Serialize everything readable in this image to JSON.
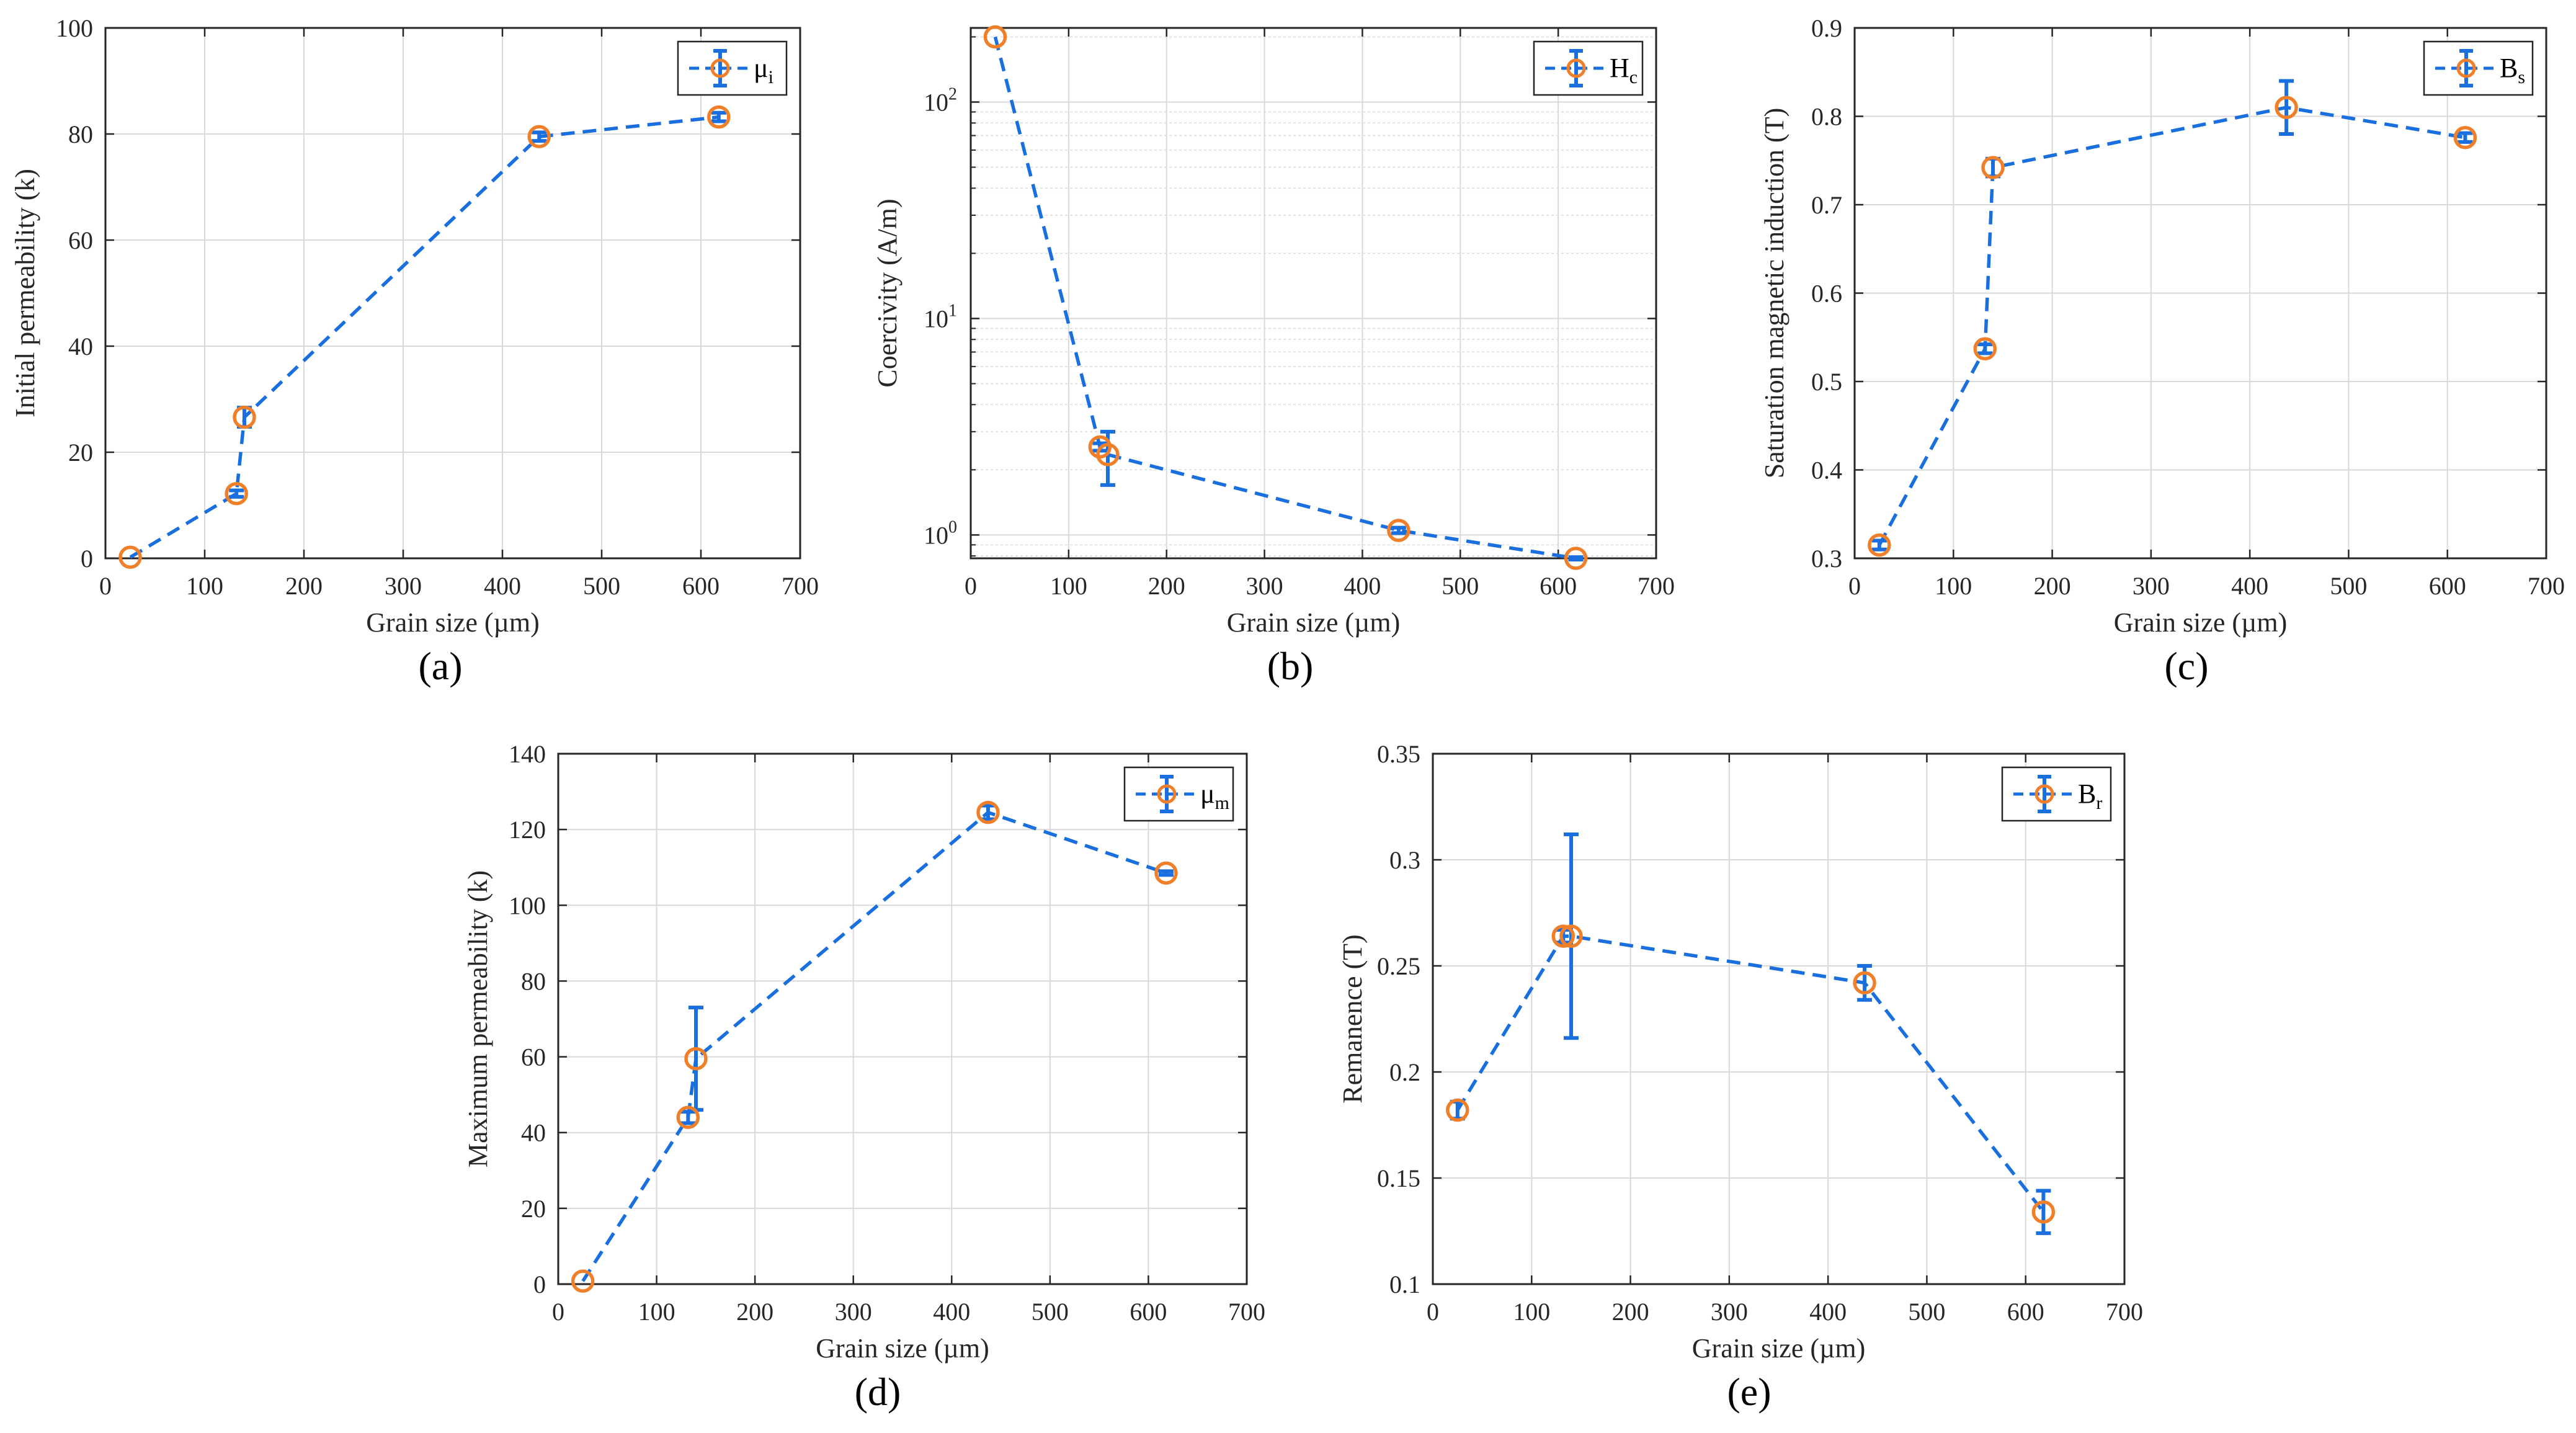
{
  "colors": {
    "line": "#1a6fdf",
    "marker": "#f07f2a",
    "grid": "#d9d9d9",
    "axis": "#262626"
  },
  "chart_data": [
    {
      "id": "a",
      "type": "line",
      "panel_label": "(a)",
      "xlabel": "Grain size (µm)",
      "ylabel": "Initial permeability (k)",
      "xlim": [
        0,
        700
      ],
      "ylim": [
        0,
        100
      ],
      "yscale": "linear",
      "xticks": [
        0,
        100,
        200,
        300,
        400,
        500,
        600,
        700
      ],
      "xtick_labels": [
        "0",
        "100",
        "200",
        "300",
        "400",
        "500",
        "600",
        "700"
      ],
      "yticks": [
        0,
        20,
        40,
        60,
        80,
        100
      ],
      "ytick_labels": [
        "0",
        "20",
        "40",
        "60",
        "80",
        "100"
      ],
      "legend": {
        "base": "μ",
        "sub": "i",
        "position": "top-right"
      },
      "series": [
        {
          "name": "μi",
          "x": [
            25,
            132,
            140,
            437,
            618
          ],
          "y": [
            0.2,
            12.2,
            26.6,
            79.5,
            83.2
          ],
          "err": [
            0,
            0.6,
            1.8,
            0.8,
            0.8
          ]
        }
      ]
    },
    {
      "id": "b",
      "type": "line",
      "panel_label": "(b)",
      "xlabel": "Grain size (µm)",
      "ylabel": "Coercivity (A/m)",
      "xlim": [
        0,
        700
      ],
      "ylim": [
        0.78,
        220
      ],
      "yscale": "log",
      "xticks": [
        0,
        100,
        200,
        300,
        400,
        500,
        600,
        700
      ],
      "xtick_labels": [
        "0",
        "100",
        "200",
        "300",
        "400",
        "500",
        "600",
        "700"
      ],
      "yticks_major": [
        1,
        10,
        100
      ],
      "ytick_labels": [
        {
          "base": "10",
          "exp": "0"
        },
        {
          "base": "10",
          "exp": "1"
        },
        {
          "base": "10",
          "exp": "2"
        }
      ],
      "legend": {
        "base": "H",
        "sub": "c",
        "position": "top-right"
      },
      "series": [
        {
          "name": "Hc",
          "x": [
            25,
            132,
            140,
            437,
            618
          ],
          "y": [
            200,
            2.55,
            2.35,
            1.05,
            0.78
          ],
          "err_lo": [
            0,
            0.1,
            0.65,
            0.03,
            0.01
          ],
          "err_hi": [
            0,
            0.1,
            0.65,
            0.03,
            0.01
          ]
        }
      ]
    },
    {
      "id": "c",
      "type": "line",
      "panel_label": "(c)",
      "xlabel": "Grain size (µm)",
      "ylabel": "Saturation magnetic induction (T)",
      "xlim": [
        0,
        700
      ],
      "ylim": [
        0.3,
        0.9
      ],
      "yscale": "linear",
      "xticks": [
        0,
        100,
        200,
        300,
        400,
        500,
        600,
        700
      ],
      "xtick_labels": [
        "0",
        "100",
        "200",
        "300",
        "400",
        "500",
        "600",
        "700"
      ],
      "yticks": [
        0.3,
        0.4,
        0.5,
        0.6,
        0.7,
        0.8,
        0.9
      ],
      "ytick_labels": [
        "0.3",
        "0.4",
        "0.5",
        "0.6",
        "0.7",
        "0.8",
        "0.9"
      ],
      "legend": {
        "base": "B",
        "sub": "s",
        "position": "top-right"
      },
      "series": [
        {
          "name": "Bs",
          "x": [
            25,
            132,
            140,
            437,
            618
          ],
          "y": [
            0.315,
            0.537,
            0.742,
            0.81,
            0.776
          ],
          "err": [
            0.005,
            0.005,
            0.01,
            0.03,
            0.005
          ]
        }
      ]
    },
    {
      "id": "d",
      "type": "line",
      "panel_label": "(d)",
      "xlabel": "Grain size (µm)",
      "ylabel": "Maximum permeability (k)",
      "xlim": [
        0,
        700
      ],
      "ylim": [
        0,
        140
      ],
      "yscale": "linear",
      "xticks": [
        0,
        100,
        200,
        300,
        400,
        500,
        600,
        700
      ],
      "xtick_labels": [
        "0",
        "100",
        "200",
        "300",
        "400",
        "500",
        "600",
        "700"
      ],
      "yticks": [
        0,
        20,
        40,
        60,
        80,
        100,
        120,
        140
      ],
      "ytick_labels": [
        "0",
        "20",
        "40",
        "60",
        "80",
        "100",
        "120",
        "140"
      ],
      "legend": {
        "base": "μ",
        "sub": "m",
        "position": "top-right"
      },
      "series": [
        {
          "name": "μm",
          "x": [
            25,
            132,
            140,
            437,
            618
          ],
          "y": [
            0.8,
            44,
            59.5,
            124.5,
            108.5
          ],
          "err": [
            0,
            1.5,
            13.5,
            1.8,
            0.5
          ]
        }
      ]
    },
    {
      "id": "e",
      "type": "line",
      "panel_label": "(e)",
      "xlabel": "Grain size (µm)",
      "ylabel": "Remanence (T)",
      "xlim": [
        0,
        700
      ],
      "ylim": [
        0.1,
        0.35
      ],
      "yscale": "linear",
      "xticks": [
        0,
        100,
        200,
        300,
        400,
        500,
        600,
        700
      ],
      "xtick_labels": [
        "0",
        "100",
        "200",
        "300",
        "400",
        "500",
        "600",
        "700"
      ],
      "yticks": [
        0.1,
        0.15,
        0.2,
        0.25,
        0.3,
        0.35
      ],
      "ytick_labels": [
        "0.1",
        "0.15",
        "0.2",
        "0.25",
        "0.3",
        "0.35"
      ],
      "legend": {
        "base": "B",
        "sub": "r",
        "position": "top-right"
      },
      "series": [
        {
          "name": "Br",
          "x": [
            25,
            132,
            140,
            437,
            618
          ],
          "y": [
            0.182,
            0.264,
            0.264,
            0.242,
            0.134
          ],
          "err": [
            0.004,
            0.003,
            0.048,
            0.008,
            0.01
          ]
        }
      ]
    }
  ]
}
